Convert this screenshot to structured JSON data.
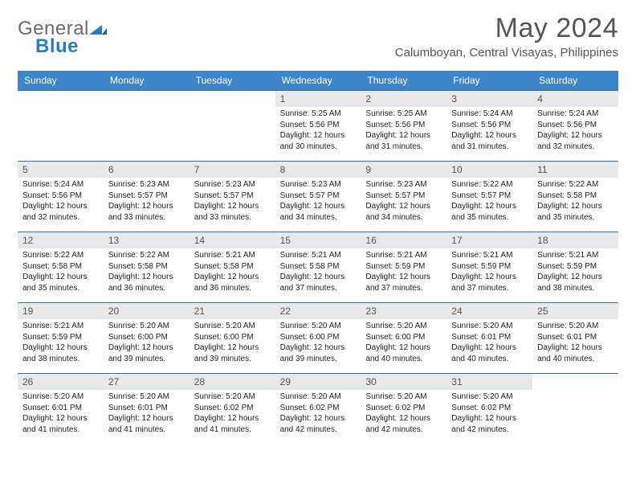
{
  "logo": {
    "part1": "General",
    "part2": "Blue"
  },
  "title": "May 2024",
  "location": "Calumboyan, Central Visayas, Philippines",
  "colors": {
    "header_bg": "#3d85c6",
    "header_fg": "#ffffff",
    "daynum_bg": "#e9e9e9",
    "rule": "#3d6a9a"
  },
  "weekdays": [
    "Sunday",
    "Monday",
    "Tuesday",
    "Wednesday",
    "Thursday",
    "Friday",
    "Saturday"
  ],
  "leading_blanks": 3,
  "days": [
    {
      "n": "1",
      "sunrise": "5:25 AM",
      "sunset": "5:56 PM",
      "daylight": "12 hours and 30 minutes."
    },
    {
      "n": "2",
      "sunrise": "5:25 AM",
      "sunset": "5:56 PM",
      "daylight": "12 hours and 31 minutes."
    },
    {
      "n": "3",
      "sunrise": "5:24 AM",
      "sunset": "5:56 PM",
      "daylight": "12 hours and 31 minutes."
    },
    {
      "n": "4",
      "sunrise": "5:24 AM",
      "sunset": "5:56 PM",
      "daylight": "12 hours and 32 minutes."
    },
    {
      "n": "5",
      "sunrise": "5:24 AM",
      "sunset": "5:56 PM",
      "daylight": "12 hours and 32 minutes."
    },
    {
      "n": "6",
      "sunrise": "5:23 AM",
      "sunset": "5:57 PM",
      "daylight": "12 hours and 33 minutes."
    },
    {
      "n": "7",
      "sunrise": "5:23 AM",
      "sunset": "5:57 PM",
      "daylight": "12 hours and 33 minutes."
    },
    {
      "n": "8",
      "sunrise": "5:23 AM",
      "sunset": "5:57 PM",
      "daylight": "12 hours and 34 minutes."
    },
    {
      "n": "9",
      "sunrise": "5:23 AM",
      "sunset": "5:57 PM",
      "daylight": "12 hours and 34 minutes."
    },
    {
      "n": "10",
      "sunrise": "5:22 AM",
      "sunset": "5:57 PM",
      "daylight": "12 hours and 35 minutes."
    },
    {
      "n": "11",
      "sunrise": "5:22 AM",
      "sunset": "5:58 PM",
      "daylight": "12 hours and 35 minutes."
    },
    {
      "n": "12",
      "sunrise": "5:22 AM",
      "sunset": "5:58 PM",
      "daylight": "12 hours and 35 minutes."
    },
    {
      "n": "13",
      "sunrise": "5:22 AM",
      "sunset": "5:58 PM",
      "daylight": "12 hours and 36 minutes."
    },
    {
      "n": "14",
      "sunrise": "5:21 AM",
      "sunset": "5:58 PM",
      "daylight": "12 hours and 36 minutes."
    },
    {
      "n": "15",
      "sunrise": "5:21 AM",
      "sunset": "5:58 PM",
      "daylight": "12 hours and 37 minutes."
    },
    {
      "n": "16",
      "sunrise": "5:21 AM",
      "sunset": "5:59 PM",
      "daylight": "12 hours and 37 minutes."
    },
    {
      "n": "17",
      "sunrise": "5:21 AM",
      "sunset": "5:59 PM",
      "daylight": "12 hours and 37 minutes."
    },
    {
      "n": "18",
      "sunrise": "5:21 AM",
      "sunset": "5:59 PM",
      "daylight": "12 hours and 38 minutes."
    },
    {
      "n": "19",
      "sunrise": "5:21 AM",
      "sunset": "5:59 PM",
      "daylight": "12 hours and 38 minutes."
    },
    {
      "n": "20",
      "sunrise": "5:20 AM",
      "sunset": "6:00 PM",
      "daylight": "12 hours and 39 minutes."
    },
    {
      "n": "21",
      "sunrise": "5:20 AM",
      "sunset": "6:00 PM",
      "daylight": "12 hours and 39 minutes."
    },
    {
      "n": "22",
      "sunrise": "5:20 AM",
      "sunset": "6:00 PM",
      "daylight": "12 hours and 39 minutes."
    },
    {
      "n": "23",
      "sunrise": "5:20 AM",
      "sunset": "6:00 PM",
      "daylight": "12 hours and 40 minutes."
    },
    {
      "n": "24",
      "sunrise": "5:20 AM",
      "sunset": "6:01 PM",
      "daylight": "12 hours and 40 minutes."
    },
    {
      "n": "25",
      "sunrise": "5:20 AM",
      "sunset": "6:01 PM",
      "daylight": "12 hours and 40 minutes."
    },
    {
      "n": "26",
      "sunrise": "5:20 AM",
      "sunset": "6:01 PM",
      "daylight": "12 hours and 41 minutes."
    },
    {
      "n": "27",
      "sunrise": "5:20 AM",
      "sunset": "6:01 PM",
      "daylight": "12 hours and 41 minutes."
    },
    {
      "n": "28",
      "sunrise": "5:20 AM",
      "sunset": "6:02 PM",
      "daylight": "12 hours and 41 minutes."
    },
    {
      "n": "29",
      "sunrise": "5:20 AM",
      "sunset": "6:02 PM",
      "daylight": "12 hours and 42 minutes."
    },
    {
      "n": "30",
      "sunrise": "5:20 AM",
      "sunset": "6:02 PM",
      "daylight": "12 hours and 42 minutes."
    },
    {
      "n": "31",
      "sunrise": "5:20 AM",
      "sunset": "6:02 PM",
      "daylight": "12 hours and 42 minutes."
    }
  ],
  "labels": {
    "sunrise": "Sunrise: ",
    "sunset": "Sunset: ",
    "daylight": "Daylight: "
  }
}
